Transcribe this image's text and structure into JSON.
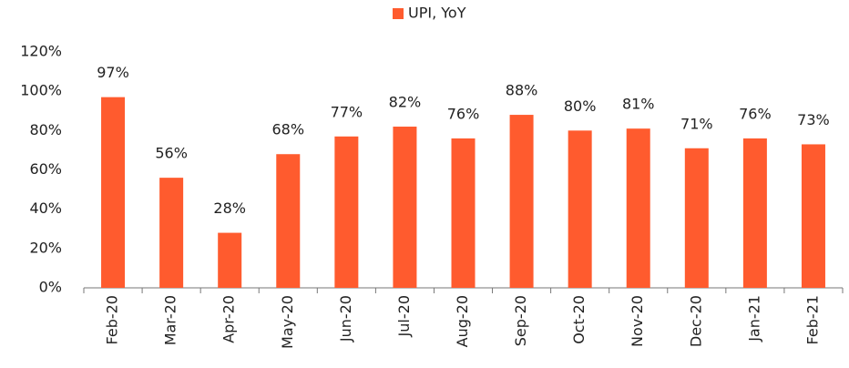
{
  "chart_data": {
    "type": "bar",
    "categories": [
      "Feb-20",
      "Mar-20",
      "Apr-20",
      "May-20",
      "Jun-20",
      "Jul-20",
      "Aug-20",
      "Sep-20",
      "Oct-20",
      "Nov-20",
      "Dec-20",
      "Jan-21",
      "Feb-21"
    ],
    "series": [
      {
        "name": "UPI, YoY",
        "color": "#ff5b2e",
        "values": [
          97,
          56,
          28,
          68,
          77,
          82,
          76,
          88,
          80,
          81,
          71,
          76,
          73
        ],
        "value_labels": [
          "97%",
          "56%",
          "28%",
          "68%",
          "77%",
          "82%",
          "76%",
          "88%",
          "80%",
          "81%",
          "71%",
          "76%",
          "73%"
        ]
      }
    ],
    "ylim": [
      0,
      120
    ],
    "yticks": [
      {
        "value": 0,
        "label": "0%"
      },
      {
        "value": 20,
        "label": "20%"
      },
      {
        "value": 40,
        "label": "40%"
      },
      {
        "value": 60,
        "label": "60%"
      },
      {
        "value": 80,
        "label": "80%"
      },
      {
        "value": 100,
        "label": "100%"
      },
      {
        "value": 120,
        "label": "120%"
      }
    ],
    "legend": "top"
  }
}
